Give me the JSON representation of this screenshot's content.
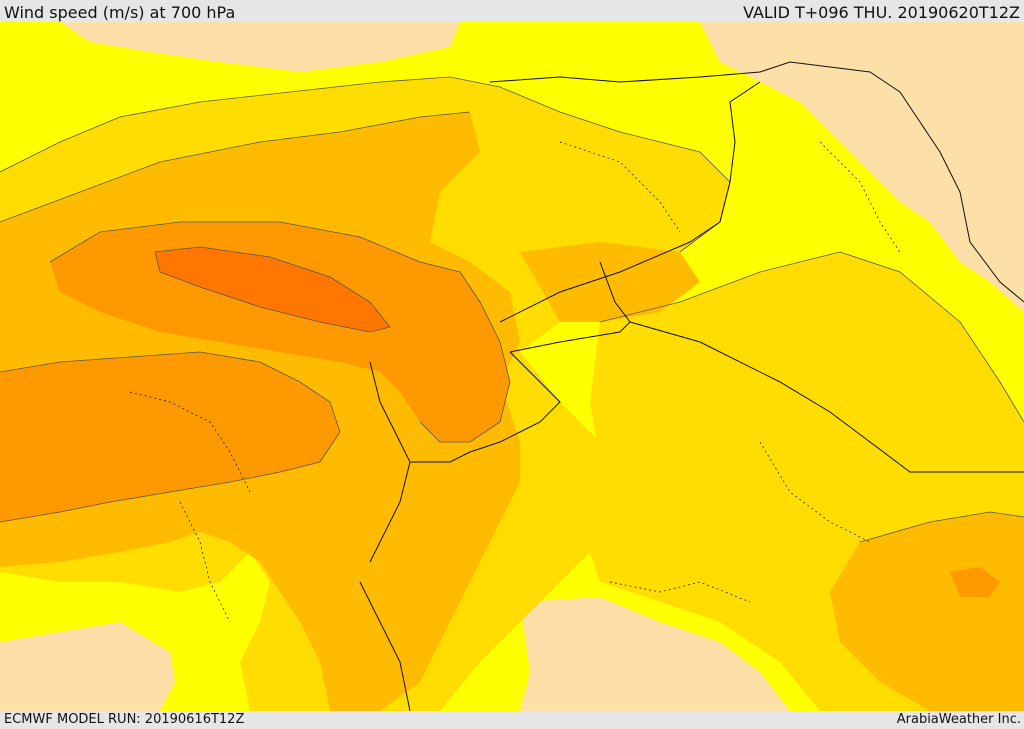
{
  "header": {
    "title": "Wind speed (m/s) at 700 hPa",
    "valid": "VALID T+096 THU. 20190620T12Z"
  },
  "footer": {
    "model_run": "ECMWF MODEL RUN: 20190616T12Z",
    "credit": "ArabiaWeather Inc."
  },
  "map": {
    "field": "wind speed at 700 hPa",
    "units": "m/s",
    "colors": {
      "lowest": "#fde0a8",
      "low": "#ffff00",
      "moderate": "#ffdd00",
      "medium": "#ffbb00",
      "high": "#ff9900",
      "highest": "#ff7700",
      "contour": "#555555",
      "border": "#111111"
    }
  }
}
